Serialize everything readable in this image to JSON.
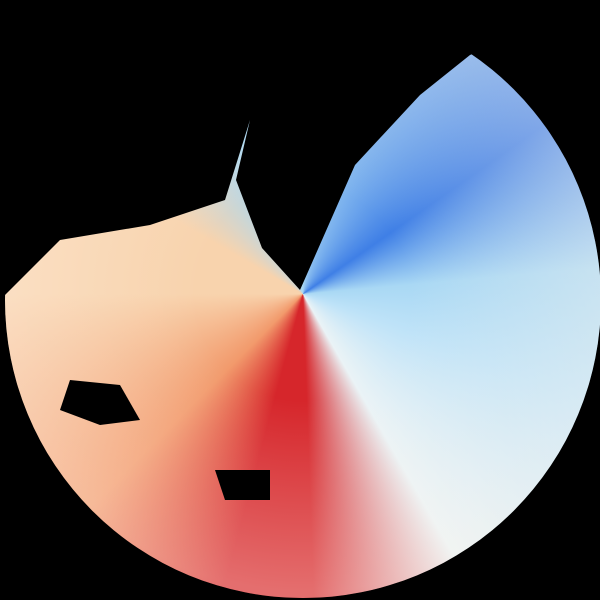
{
  "image": {
    "kind": "radar-velocity-sweep",
    "background": "#000000",
    "colors": {
      "north": "#a9d8f4",
      "inbound_core": "#3f7fe6",
      "east": "#bfe3f8",
      "southeast": "#eaf3f6",
      "south_core": "#d6262b",
      "southwest": "#f29a6c",
      "west": "#f8d3ad",
      "edge_blue": "#4a7df0"
    }
  }
}
